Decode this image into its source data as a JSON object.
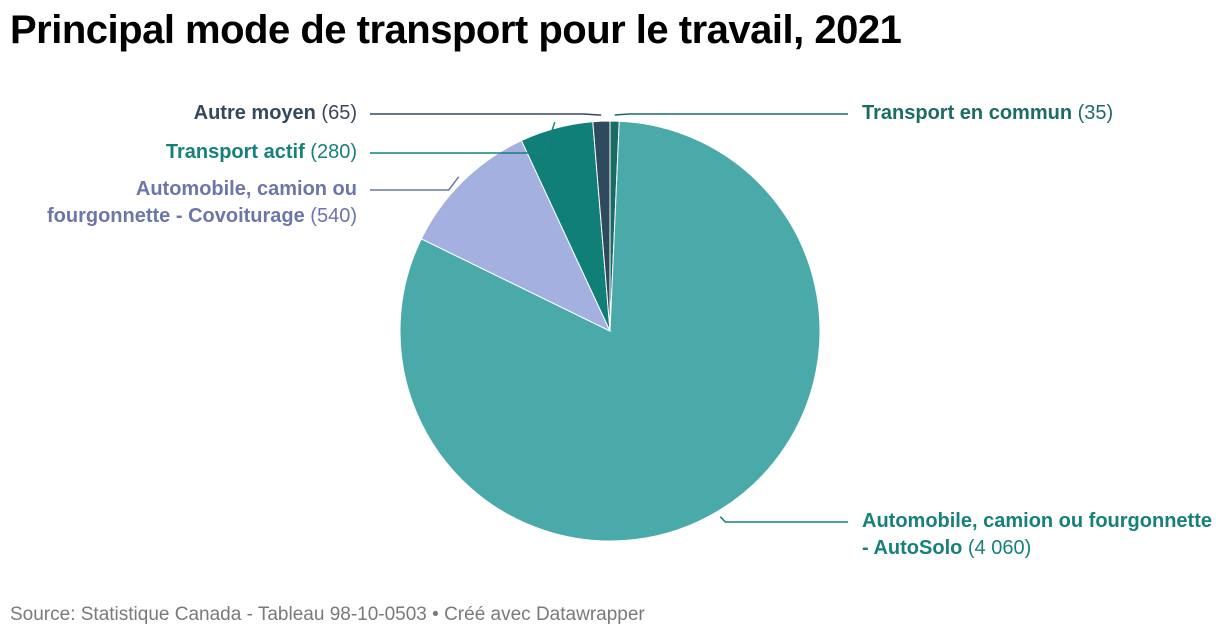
{
  "title": "Principal mode de transport pour le travail, 2021",
  "source_text": "Source: Statistique Canada - Tableau 98-10-0503 • Créé avec Datawrapper",
  "chart_data": {
    "type": "pie",
    "title": "Principal mode de transport pour le travail, 2021",
    "slices": [
      {
        "label": "Transport en commun",
        "value": 35,
        "value_label": "(35)",
        "color": "#1a6b66",
        "text_color": "#1d6b66"
      },
      {
        "label": "Automobile, camion ou fourgonnette - AutoSolo",
        "value": 4060,
        "value_label": "(4 060)",
        "color": "#4aaaa9",
        "text_color": "#17807a"
      },
      {
        "label": "Automobile, camion ou fourgonnette - Covoiturage",
        "value": 540,
        "value_label": "(540)",
        "color": "#a4b0df",
        "text_color": "#6c76a8"
      },
      {
        "label": "Transport actif",
        "value": 280,
        "value_label": "(280)",
        "color": "#0f7f77",
        "text_color": "#17807a"
      },
      {
        "label": "Autre moyen",
        "value": 65,
        "value_label": "(65)",
        "color": "#2f4a5c",
        "text_color": "#34495c"
      }
    ]
  }
}
